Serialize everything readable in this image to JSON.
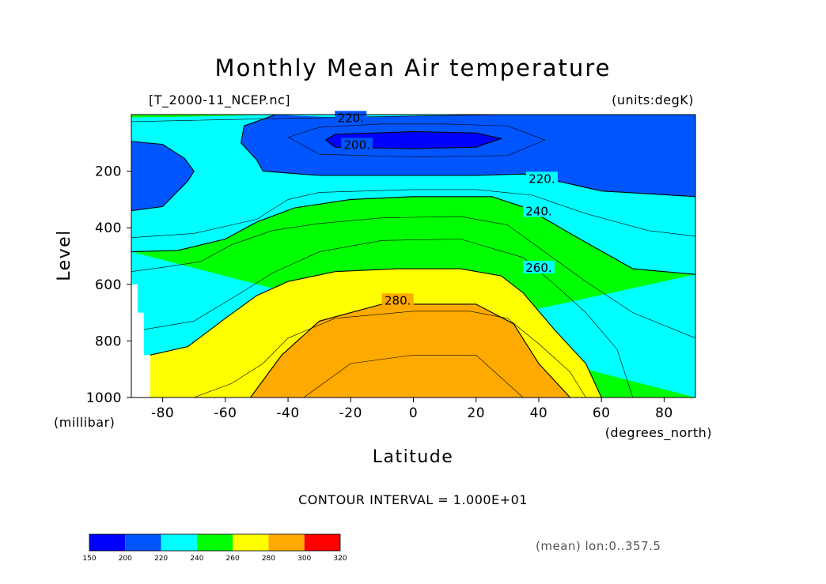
{
  "title": "Monthly Mean Air temperature",
  "file_label": "[T_2000-11_NCEP.nc]",
  "units_label": "(units:degK)",
  "contour_interval": "CONTOUR INTERVAL = 1.000E+01",
  "averaging_note": "(mean) lon:0..357.5",
  "chart_data": {
    "type": "contour",
    "xlabel": "Latitude",
    "xunits": "(degrees_north)",
    "ylabel": "Level",
    "yunits": "(millibar)",
    "xlim": [
      -90,
      90
    ],
    "ylim": [
      1000,
      0
    ],
    "xticks": [
      "-80",
      "-60",
      "-40",
      "-20",
      "0",
      "20",
      "40",
      "60",
      "80"
    ],
    "xtick_values": [
      -80,
      -60,
      -40,
      -20,
      0,
      20,
      40,
      60,
      80
    ],
    "yticks": [
      "200",
      "400",
      "600",
      "800",
      "1000"
    ],
    "ytick_values": [
      200,
      400,
      600,
      800,
      1000
    ],
    "contour_labels": [
      {
        "text": "220.",
        "lat": -20,
        "lev": 15
      },
      {
        "text": "200.",
        "lat": -18,
        "lev": 110
      },
      {
        "text": "220.",
        "lat": 41,
        "lev": 230
      },
      {
        "text": "240.",
        "lat": 40,
        "lev": 345
      },
      {
        "text": "260.",
        "lat": 40,
        "lev": 545
      },
      {
        "text": "280.",
        "lat": -5,
        "lev": 660
      }
    ],
    "levels": [
      150,
      200,
      220,
      240,
      260,
      280,
      300,
      320
    ],
    "colors": [
      "#0000ff",
      "#0055ff",
      "#00ffff",
      "#00ff00",
      "#ffff00",
      "#ffaa00",
      "#ff0000"
    ],
    "colorbar_labels": [
      "150",
      "200",
      "220",
      "240",
      "260",
      "280",
      "300",
      "320"
    ],
    "missing_region": [
      [
        -90,
        600
      ],
      [
        -88,
        600
      ],
      [
        -88,
        700
      ],
      [
        -86,
        700
      ],
      [
        -86,
        850
      ],
      [
        -84,
        850
      ],
      [
        -84,
        1000
      ],
      [
        -90,
        1000
      ]
    ],
    "contour_lines": {
      "c200": [
        [
          -25,
          70
        ],
        [
          0,
          60
        ],
        [
          20,
          65
        ],
        [
          28,
          85
        ],
        [
          20,
          115
        ],
        [
          0,
          120
        ],
        [
          -25,
          115
        ],
        [
          -28,
          90
        ],
        [
          -25,
          70
        ]
      ],
      "c210": [
        [
          -40,
          80
        ],
        [
          -30,
          45
        ],
        [
          -10,
          33
        ],
        [
          10,
          33
        ],
        [
          30,
          40
        ],
        [
          42,
          90
        ],
        [
          30,
          145
        ],
        [
          0,
          150
        ],
        [
          -30,
          140
        ],
        [
          -40,
          80
        ]
      ],
      "c220a": [
        [
          -90,
          95
        ],
        [
          -80,
          105
        ],
        [
          -73,
          155
        ],
        [
          -70,
          200
        ],
        [
          -72,
          235
        ],
        [
          -80,
          325
        ],
        [
          -90,
          340
        ]
      ],
      "c220b": [
        [
          -90,
          25
        ],
        [
          -70,
          20
        ],
        [
          -48,
          15
        ],
        [
          -25,
          10
        ],
        [
          0,
          5
        ],
        [
          30,
          0
        ],
        [
          70,
          0
        ],
        [
          90,
          0
        ]
      ],
      "c220c": [
        [
          -44,
          0
        ],
        [
          -54,
          40
        ],
        [
          -55,
          100
        ],
        [
          -50,
          160
        ],
        [
          -48,
          200
        ],
        [
          -30,
          215
        ],
        [
          0,
          215
        ],
        [
          20,
          215
        ],
        [
          35,
          210
        ],
        [
          48,
          240
        ],
        [
          60,
          270
        ],
        [
          75,
          280
        ],
        [
          90,
          290
        ]
      ],
      "c230": [
        [
          -90,
          435
        ],
        [
          -70,
          420
        ],
        [
          -50,
          370
        ],
        [
          -40,
          300
        ],
        [
          -30,
          275
        ],
        [
          0,
          265
        ],
        [
          20,
          265
        ],
        [
          38,
          285
        ],
        [
          55,
          350
        ],
        [
          75,
          410
        ],
        [
          90,
          430
        ]
      ],
      "c240a": [
        [
          -90,
          485
        ],
        [
          -75,
          480
        ],
        [
          -60,
          440
        ],
        [
          -50,
          380
        ],
        [
          -38,
          330
        ],
        [
          -20,
          300
        ],
        [
          0,
          290
        ],
        [
          25,
          290
        ],
        [
          36,
          330
        ],
        [
          50,
          420
        ],
        [
          70,
          545
        ],
        [
          90,
          565
        ]
      ],
      "c240b": [
        [
          -90,
          555
        ],
        [
          -80,
          540
        ],
        [
          -68,
          520
        ],
        [
          -58,
          460
        ],
        [
          -45,
          410
        ],
        [
          -30,
          385
        ],
        [
          -10,
          365
        ],
        [
          15,
          360
        ],
        [
          30,
          390
        ],
        [
          40,
          470
        ],
        [
          55,
          590
        ],
        [
          70,
          700
        ],
        [
          90,
          790
        ]
      ],
      "c250": [
        [
          -86,
          760
        ],
        [
          -70,
          730
        ],
        [
          -55,
          630
        ],
        [
          -45,
          560
        ],
        [
          -30,
          485
        ],
        [
          -10,
          445
        ],
        [
          15,
          440
        ],
        [
          35,
          505
        ],
        [
          45,
          600
        ],
        [
          55,
          700
        ],
        [
          65,
          830
        ],
        [
          70,
          1000
        ]
      ],
      "c260": [
        [
          -84,
          850
        ],
        [
          -72,
          820
        ],
        [
          -60,
          720
        ],
        [
          -50,
          640
        ],
        [
          -40,
          590
        ],
        [
          -25,
          555
        ],
        [
          -5,
          545
        ],
        [
          15,
          545
        ],
        [
          28,
          570
        ],
        [
          35,
          630
        ],
        [
          45,
          760
        ],
        [
          55,
          880
        ],
        [
          60,
          1000
        ]
      ],
      "c270": [
        [
          -70,
          1000
        ],
        [
          -58,
          950
        ],
        [
          -48,
          880
        ],
        [
          -40,
          790
        ],
        [
          -25,
          720
        ],
        [
          0,
          695
        ],
        [
          18,
          695
        ],
        [
          30,
          720
        ],
        [
          40,
          810
        ],
        [
          50,
          910
        ],
        [
          55,
          1000
        ]
      ],
      "c280": [
        [
          -52,
          1000
        ],
        [
          -42,
          850
        ],
        [
          -30,
          730
        ],
        [
          -10,
          670
        ],
        [
          20,
          670
        ],
        [
          32,
          740
        ],
        [
          40,
          880
        ],
        [
          50,
          1000
        ]
      ],
      "c290": [
        [
          -35,
          1000
        ],
        [
          -20,
          880
        ],
        [
          0,
          850
        ],
        [
          20,
          850
        ],
        [
          35,
          1000
        ]
      ]
    }
  }
}
